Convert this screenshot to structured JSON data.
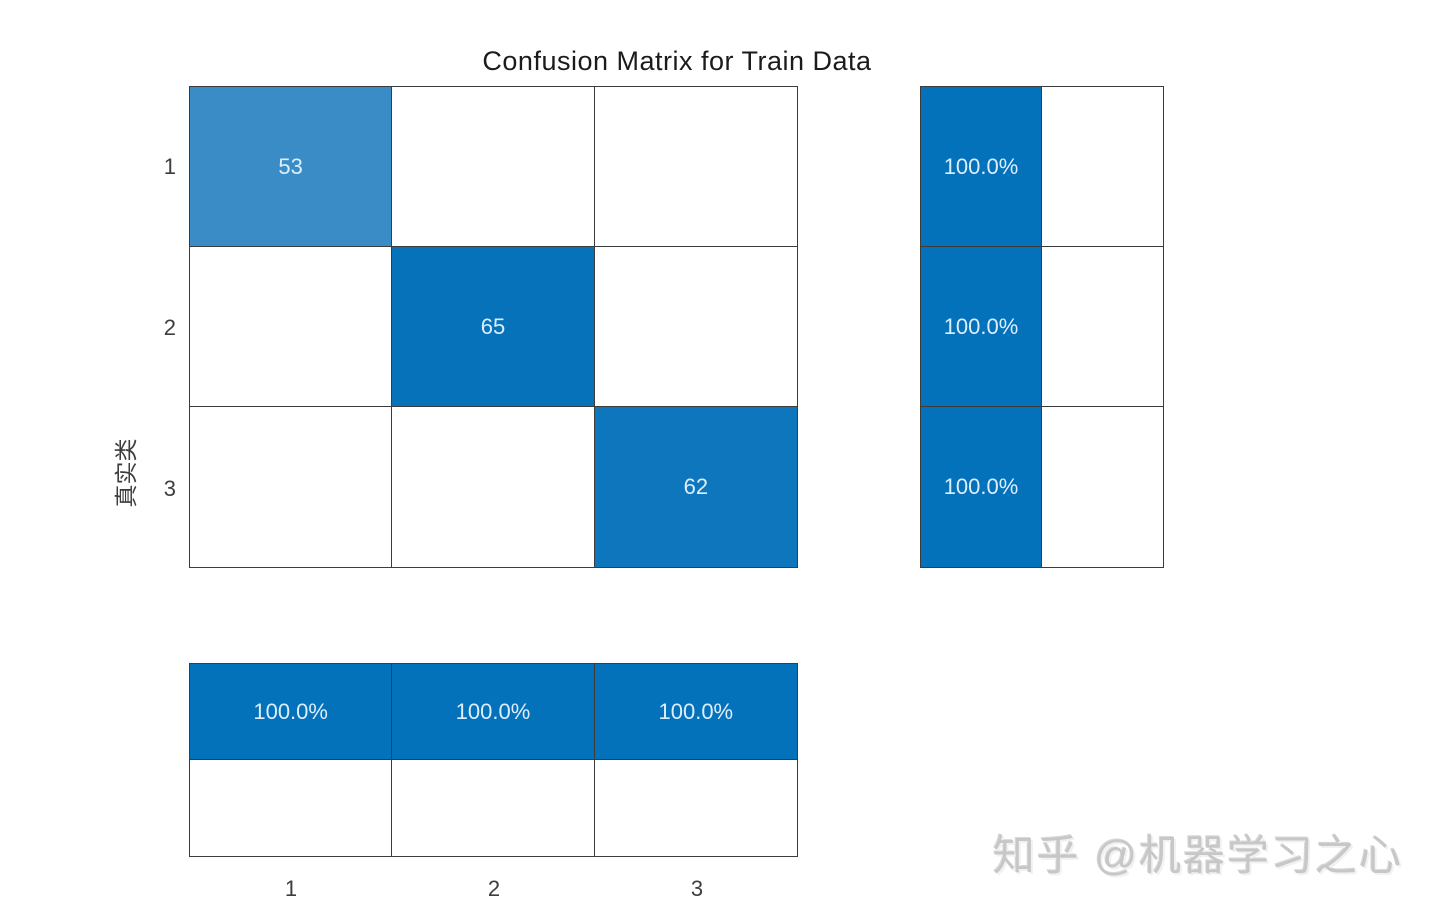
{
  "title": "Confusion Matrix for Train Data",
  "axes": {
    "ylabel": "真实类",
    "y_tick_labels": [
      "1",
      "2",
      "3"
    ],
    "x_tick_labels": [
      "1",
      "2",
      "3"
    ]
  },
  "colors": {
    "diag_light_blue": "#3a8cc6",
    "diag_dark_blue": "#0572ba",
    "diag_mid_blue": "#0e76bd",
    "summary_blue": "#0471bb",
    "empty_cell": "#ffffff",
    "cell_text": "#dceefb",
    "grid_line": "#3c3c3c",
    "tick_text": "#3d3d3d",
    "title_text": "#1b1b1b",
    "watermark_text": "#c7c7c7"
  },
  "main_cells": [
    {
      "v": "53",
      "bg": "#3a8cc6"
    },
    {
      "v": "",
      "bg": "#ffffff"
    },
    {
      "v": "",
      "bg": "#ffffff"
    },
    {
      "v": "",
      "bg": "#ffffff"
    },
    {
      "v": "65",
      "bg": "#0572ba"
    },
    {
      "v": "",
      "bg": "#ffffff"
    },
    {
      "v": "",
      "bg": "#ffffff"
    },
    {
      "v": "",
      "bg": "#ffffff"
    },
    {
      "v": "62",
      "bg": "#0e76bd"
    }
  ],
  "right_cells": [
    {
      "v": "100.0%",
      "bg": "#0471bb"
    },
    {
      "v": "",
      "bg": "#ffffff"
    },
    {
      "v": "100.0%",
      "bg": "#0471bb"
    },
    {
      "v": "",
      "bg": "#ffffff"
    },
    {
      "v": "100.0%",
      "bg": "#0471bb"
    },
    {
      "v": "",
      "bg": "#ffffff"
    }
  ],
  "bottom_cells": [
    {
      "v": "100.0%",
      "bg": "#0471bb"
    },
    {
      "v": "100.0%",
      "bg": "#0471bb"
    },
    {
      "v": "100.0%",
      "bg": "#0471bb"
    },
    {
      "v": "",
      "bg": "#ffffff"
    },
    {
      "v": "",
      "bg": "#ffffff"
    },
    {
      "v": "",
      "bg": "#ffffff"
    }
  ],
  "watermark": "知乎 @机器学习之心",
  "chart_data": {
    "type": "heatmap",
    "title": "Confusion Matrix for Train Data",
    "xlabel": "",
    "ylabel": "真实类",
    "classes": [
      "1",
      "2",
      "3"
    ],
    "matrix_true_rows_by_predicted_cols": [
      [
        53,
        0,
        0
      ],
      [
        0,
        65,
        0
      ],
      [
        0,
        0,
        62
      ]
    ],
    "row_summary_position": "right",
    "row_summary_correct_percent": [
      "100.0%",
      "100.0%",
      "100.0%"
    ],
    "column_summary_position": "bottom",
    "column_summary_correct_percent": [
      "100.0%",
      "100.0%",
      "100.0%"
    ],
    "grid": true,
    "legend": false
  }
}
